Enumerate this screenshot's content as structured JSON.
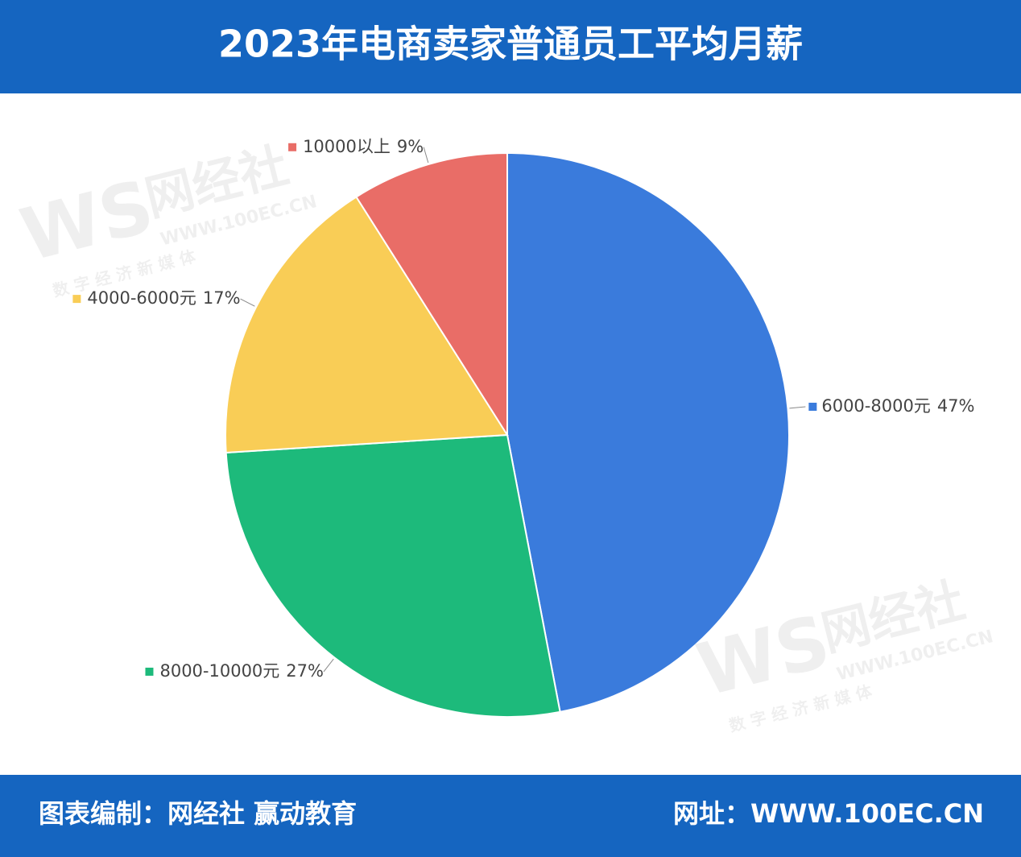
{
  "chart_data": {
    "type": "pie",
    "title": "2023年电商卖家普通员工平均月薪",
    "categories": [
      "6000-8000元",
      "8000-10000元",
      "4000-6000元",
      "10000以上"
    ],
    "values": [
      47,
      27,
      17,
      9
    ],
    "value_labels": [
      "47%",
      "27%",
      "17%",
      "9%"
    ],
    "colors": [
      "#3a7bdc",
      "#1dba7b",
      "#f9cd56",
      "#e96d67"
    ]
  },
  "footer": {
    "source": "图表编制：网经社 赢动教育",
    "website": "网址：WWW.100EC.CN"
  },
  "watermark": {
    "logo": "WS",
    "name": "网经社",
    "url": "WWW.100EC.CN",
    "slogan": "数 字 经 济 新 媒 体"
  }
}
